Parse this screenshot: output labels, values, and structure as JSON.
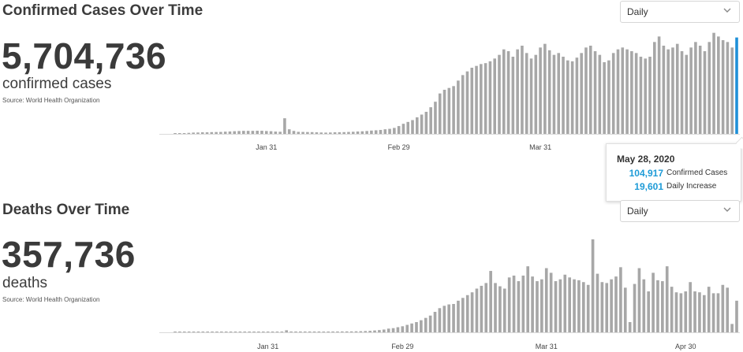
{
  "confirmed": {
    "title": "Confirmed Cases Over Time",
    "total": "5,704,736",
    "label": "confirmed cases",
    "source": "Source: World Health Organization",
    "frequency": "Daily"
  },
  "deaths": {
    "title": "Deaths Over Time",
    "total": "357,736",
    "label": "deaths",
    "source": "Source: World Health Organization",
    "frequency": "Daily"
  },
  "tooltip": {
    "date": "May 28, 2020",
    "confirmed_value": "104,917",
    "confirmed_label": "Confirmed Cases",
    "increase_value": "19,601",
    "increase_label": "Daily Increase"
  },
  "colors": {
    "bar": "#a7a7a7",
    "highlight": "#1e90d8",
    "accent_text": "#1e9bd7"
  },
  "chart_data": [
    {
      "type": "bar",
      "title": "Confirmed Cases Over Time",
      "x_start": "2020-01-11",
      "x_end": "2020-05-28",
      "tick_labels": [
        "Jan 31",
        "Feb 29",
        "Mar 31"
      ],
      "highlight_date": "2020-05-28",
      "ylim": [
        0,
        108000
      ],
      "values": [
        40,
        40,
        40,
        1100,
        1400,
        1500,
        1700,
        1700,
        1900,
        2000,
        2100,
        2400,
        2600,
        2900,
        3100,
        3300,
        3300,
        3300,
        3400,
        3400,
        3100,
        2900,
        2500,
        2300,
        17000,
        5000,
        3200,
        2200,
        2100,
        2000,
        1900,
        1700,
        1500,
        1400,
        1500,
        1700,
        1800,
        1900,
        2100,
        2300,
        2600,
        2800,
        3100,
        3600,
        3900,
        4300,
        5000,
        5500,
        6500,
        8500,
        11000,
        13000,
        15000,
        18000,
        21000,
        24000,
        29000,
        35000,
        44000,
        48000,
        50000,
        52000,
        58000,
        64000,
        68000,
        72000,
        74000,
        76000,
        77000,
        79000,
        82000,
        86000,
        92000,
        90000,
        84000,
        92000,
        96000,
        88000,
        82000,
        86000,
        94000,
        98000,
        91000,
        86000,
        88000,
        84000,
        80000,
        79000,
        83000,
        88000,
        94000,
        96000,
        90000,
        86000,
        78000,
        80000,
        88000,
        92000,
        94000,
        92000,
        90000,
        88000,
        84000,
        82000,
        84000,
        100000,
        106000,
        96000,
        92000,
        94000,
        98000,
        90000,
        86000,
        94000,
        100000,
        96000,
        90000,
        100000,
        110000,
        106000,
        102000,
        100000,
        94000,
        104917
      ]
    },
    {
      "type": "bar",
      "title": "Deaths Over Time",
      "x_start": "2020-01-11",
      "x_end": "2020-05-28",
      "tick_labels": [
        "Jan 31",
        "Feb 29",
        "Mar 31",
        "Apr 30"
      ],
      "ylim": [
        0,
        10500
      ],
      "values": [
        10,
        10,
        10,
        20,
        20,
        20,
        30,
        30,
        30,
        40,
        40,
        45,
        50,
        55,
        60,
        60,
        65,
        70,
        70,
        75,
        75,
        80,
        80,
        80,
        220,
        90,
        90,
        90,
        90,
        90,
        90,
        90,
        85,
        85,
        90,
        90,
        95,
        100,
        100,
        110,
        120,
        140,
        160,
        200,
        240,
        300,
        400,
        450,
        550,
        650,
        800,
        950,
        1100,
        1300,
        1550,
        1800,
        2200,
        2600,
        2850,
        3000,
        3050,
        3400,
        3700,
        4000,
        4300,
        4700,
        5000,
        5300,
        6600,
        5300,
        4950,
        4700,
        5900,
        6100,
        5500,
        6100,
        7100,
        6000,
        5500,
        5700,
        6900,
        6400,
        5500,
        5700,
        6200,
        5900,
        5700,
        5600,
        5400,
        5100,
        10000,
        6300,
        5400,
        5300,
        5700,
        6000,
        7000,
        4800,
        1100,
        5200,
        6900,
        5700,
        4400,
        6400,
        5600,
        5500,
        7100,
        4900,
        4300,
        4200,
        4400,
        5400,
        4400,
        4300,
        4000,
        4900,
        4200,
        4200,
        5100,
        4800,
        900,
        3400
      ]
    }
  ]
}
